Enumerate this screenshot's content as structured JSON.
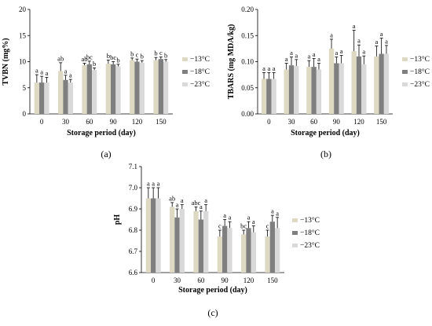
{
  "chart_data": [
    {
      "panel_label": "(a)",
      "type": "bar",
      "categories": [
        "0",
        "30",
        "60",
        "90",
        "120",
        "150"
      ],
      "xlabel": "Storage period  (day)",
      "ylabel": "TVBN  (mg%)",
      "ylim": [
        0,
        20
      ],
      "yticks": [
        "0",
        "5",
        "10",
        "15",
        "20"
      ],
      "legend_position": "right",
      "series": [
        {
          "name": "−13°C",
          "color": "#ddd9c3",
          "values": [
            6.0,
            8.2,
            9.3,
            9.6,
            10.3,
            10.3
          ],
          "errors": [
            1.5,
            1.6,
            0.4,
            0.7,
            0.4,
            0.5
          ],
          "letters": [
            "a",
            "ab",
            "ab",
            "b",
            "b",
            "b"
          ]
        },
        {
          "name": "−18°C",
          "color": "#7f7f7f",
          "values": [
            6.0,
            6.5,
            9.5,
            9.5,
            10.0,
            10.5
          ],
          "errors": [
            1.2,
            0.9,
            0.6,
            0.5,
            0.5,
            0.4
          ],
          "letters": [
            "a",
            "a",
            "bc",
            "bc",
            "c",
            "c"
          ]
        },
        {
          "name": "−23°C",
          "color": "#d9d9d9",
          "values": [
            6.0,
            6.0,
            8.4,
            9.1,
            9.8,
            10.0
          ],
          "errors": [
            1.0,
            0.6,
            0.4,
            0.4,
            0.4,
            0.4
          ],
          "letters": [
            "a",
            "a",
            "b",
            "b",
            "b",
            "b"
          ]
        }
      ]
    },
    {
      "panel_label": "(b)",
      "type": "bar",
      "categories": [
        "0",
        "30",
        "60",
        "90",
        "120",
        "150"
      ],
      "xlabel": "Storage period  (day)",
      "ylabel": "TBARS (mg MDA/kg)",
      "ylim": [
        0,
        0.2
      ],
      "yticks": [
        "0.00",
        "0.05",
        "0.10",
        "0.15",
        "0.20"
      ],
      "legend_position": "right",
      "series": [
        {
          "name": "−13°C",
          "color": "#ddd9c3",
          "values": [
            0.067,
            0.085,
            0.09,
            0.125,
            0.12,
            0.11
          ],
          "errors": [
            0.012,
            0.012,
            0.012,
            0.018,
            0.04,
            0.02
          ],
          "letters": [
            "a",
            "a",
            "a",
            "a",
            "a",
            "a"
          ]
        },
        {
          "name": "−18°C",
          "color": "#7f7f7f",
          "values": [
            0.067,
            0.093,
            0.09,
            0.097,
            0.11,
            0.115
          ],
          "errors": [
            0.012,
            0.016,
            0.016,
            0.012,
            0.022,
            0.03
          ],
          "letters": [
            "a",
            "a",
            "a",
            "a",
            "a",
            "a"
          ]
        },
        {
          "name": "−23°C",
          "color": "#d9d9d9",
          "values": [
            0.067,
            0.092,
            0.085,
            0.097,
            0.095,
            0.115
          ],
          "errors": [
            0.012,
            0.012,
            0.012,
            0.015,
            0.016,
            0.016
          ],
          "letters": [
            "a",
            "a",
            "a",
            "a",
            "a",
            "a"
          ]
        }
      ]
    },
    {
      "panel_label": "(c)",
      "type": "bar",
      "categories": [
        "0",
        "30",
        "60",
        "90",
        "120",
        "150"
      ],
      "xlabel": "Storage period  (day)",
      "ylabel": "pH",
      "ylim": [
        6.6,
        7.1
      ],
      "yticks": [
        "6.6",
        "6.7",
        "6.8",
        "6.9",
        "7.0",
        "7.1"
      ],
      "legend_position": "right",
      "series": [
        {
          "name": "−13°C",
          "color": "#ddd9c3",
          "values": [
            6.95,
            6.91,
            6.89,
            6.77,
            6.78,
            6.77
          ],
          "errors": [
            0.05,
            0.02,
            0.02,
            0.03,
            0.02,
            0.03
          ],
          "letters": [
            "a",
            "ab",
            "abc",
            "c",
            "bc",
            "c"
          ]
        },
        {
          "name": "−18°C",
          "color": "#7f7f7f",
          "values": [
            6.95,
            6.86,
            6.85,
            6.82,
            6.81,
            6.84
          ],
          "errors": [
            0.05,
            0.04,
            0.04,
            0.03,
            0.03,
            0.03
          ],
          "letters": [
            "a",
            "a",
            "a",
            "a",
            "a",
            "a"
          ]
        },
        {
          "name": "−23°C",
          "color": "#d9d9d9",
          "values": [
            6.95,
            6.9,
            6.89,
            6.81,
            6.79,
            6.81
          ],
          "errors": [
            0.05,
            0.02,
            0.03,
            0.03,
            0.03,
            0.05
          ],
          "letters": [
            "a",
            "a",
            "a",
            "a",
            "a",
            "a"
          ]
        }
      ]
    }
  ]
}
